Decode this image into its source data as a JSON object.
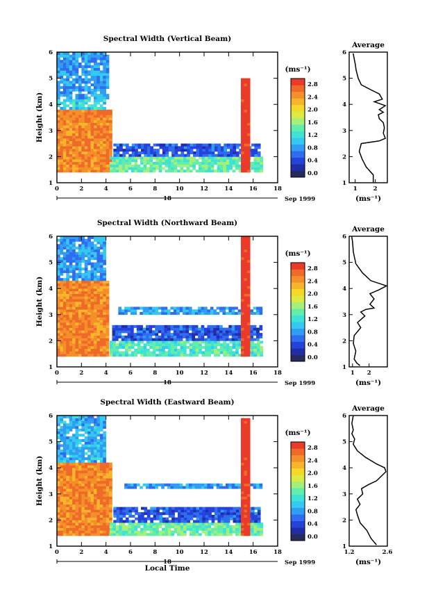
{
  "date_label": "Sep 1999",
  "day_label": "18",
  "xlabel": "Local Time",
  "colorbar": {
    "unit": "(ms⁻¹)",
    "ticks": [
      "2.8",
      "2.4",
      "2.0",
      "1.6",
      "1.2",
      "0.8",
      "0.4",
      "0.0"
    ],
    "colors": [
      "#262a5e",
      "#1f2ea8",
      "#2443d8",
      "#2f6cf0",
      "#2f9df2",
      "#35c8f0",
      "#3fe3d6",
      "#62eeaa",
      "#a4f07a",
      "#dceb44",
      "#f5d928",
      "#f6b52b",
      "#f48f2a",
      "#ef6a28",
      "#ea3a2a"
    ]
  },
  "chart_data": [
    {
      "type": "heatmap",
      "title": "Spectral Width (Vertical Beam)",
      "xlabel": "",
      "ylabel": "Height (km)",
      "x_ticks": [
        "0",
        "2",
        "4",
        "6",
        "8",
        "10",
        "12",
        "14",
        "16",
        "18"
      ],
      "y_ticks": [
        "1",
        "2",
        "3",
        "4",
        "5",
        "6"
      ],
      "xlim": [
        0,
        18
      ],
      "ylim": [
        1,
        6
      ],
      "zlabel": "Spectral width (ms⁻¹)",
      "zlim": [
        0.0,
        3.0
      ],
      "regions": [
        {
          "x": [
            0,
            4.3
          ],
          "y": [
            1.4,
            3.8
          ],
          "z": 2.8
        },
        {
          "x": [
            0,
            4.0
          ],
          "y": [
            3.8,
            4.2
          ],
          "z": 1.2
        },
        {
          "x": [
            0,
            4.1
          ],
          "y": [
            4.2,
            6.0
          ],
          "z": 0.9
        },
        {
          "x": [
            4.3,
            16.6
          ],
          "y": [
            1.4,
            2.0
          ],
          "z": 1.5
        },
        {
          "x": [
            4.6,
            16.6
          ],
          "y": [
            2.0,
            2.5
          ],
          "z": 0.6
        },
        {
          "x": [
            15.0,
            15.6
          ],
          "y": [
            1.4,
            5.0
          ],
          "z": 3.0
        }
      ],
      "average_profile": {
        "title": "Average",
        "xlabel": "(ms⁻¹)",
        "x_ticks": [
          "1",
          "2"
        ],
        "xlim": [
          0.7,
          2.6
        ],
        "ylim": [
          1,
          6
        ],
        "points": [
          [
            1.9,
            1.02
          ],
          [
            1.9,
            1.3
          ],
          [
            1.55,
            1.6
          ],
          [
            1.35,
            1.9
          ],
          [
            1.2,
            2.2
          ],
          [
            1.3,
            2.5
          ],
          [
            2.2,
            2.6
          ],
          [
            2.5,
            2.7
          ],
          [
            2.4,
            2.9
          ],
          [
            2.45,
            3.1
          ],
          [
            2.4,
            3.3
          ],
          [
            2.2,
            3.45
          ],
          [
            2.15,
            3.6
          ],
          [
            2.4,
            3.7
          ],
          [
            2.2,
            3.8
          ],
          [
            2.5,
            3.95
          ],
          [
            1.95,
            4.1
          ],
          [
            2.35,
            4.2
          ],
          [
            2.2,
            4.4
          ],
          [
            1.8,
            4.55
          ],
          [
            1.3,
            4.75
          ],
          [
            1.15,
            5.0
          ],
          [
            1.05,
            5.3
          ],
          [
            1.0,
            5.55
          ],
          [
            0.95,
            5.75
          ],
          [
            0.9,
            5.95
          ]
        ]
      }
    },
    {
      "type": "heatmap",
      "title": "Spectral Width (Northward Beam)",
      "xlabel": "",
      "ylabel": "Height (km)",
      "x_ticks": [
        "0",
        "2",
        "4",
        "6",
        "8",
        "10",
        "12",
        "14",
        "16",
        "18"
      ],
      "y_ticks": [
        "1",
        "2",
        "3",
        "4",
        "5",
        "6"
      ],
      "xlim": [
        0,
        18
      ],
      "ylim": [
        1,
        6
      ],
      "zlabel": "Spectral width (ms⁻¹)",
      "zlim": [
        0.0,
        3.0
      ],
      "regions": [
        {
          "x": [
            0,
            4.2
          ],
          "y": [
            1.4,
            4.3
          ],
          "z": 2.8
        },
        {
          "x": [
            0,
            4.0
          ],
          "y": [
            4.3,
            6.0
          ],
          "z": 0.9
        },
        {
          "x": [
            4.3,
            16.6
          ],
          "y": [
            1.4,
            2.0
          ],
          "z": 1.4
        },
        {
          "x": [
            4.5,
            16.6
          ],
          "y": [
            2.0,
            2.6
          ],
          "z": 0.6
        },
        {
          "x": [
            5.0,
            16.6
          ],
          "y": [
            3.0,
            3.3
          ],
          "z": 0.9
        },
        {
          "x": [
            15.0,
            15.6
          ],
          "y": [
            1.4,
            6.0
          ],
          "z": 3.0
        }
      ],
      "average_profile": {
        "title": "Average",
        "xlabel": "(ms⁻¹)",
        "x_ticks": [
          "1",
          "2"
        ],
        "xlim": [
          0.8,
          3.1
        ],
        "ylim": [
          1,
          6
        ],
        "points": [
          [
            1.45,
            1.05
          ],
          [
            1.25,
            1.15
          ],
          [
            1.1,
            1.3
          ],
          [
            1.2,
            1.6
          ],
          [
            1.05,
            1.9
          ],
          [
            1.1,
            2.2
          ],
          [
            1.5,
            2.5
          ],
          [
            1.3,
            2.7
          ],
          [
            1.75,
            2.95
          ],
          [
            1.5,
            3.1
          ],
          [
            1.8,
            3.2
          ],
          [
            2.3,
            3.25
          ],
          [
            2.05,
            3.4
          ],
          [
            2.3,
            3.6
          ],
          [
            2.05,
            3.8
          ],
          [
            2.6,
            3.95
          ],
          [
            3.05,
            4.1
          ],
          [
            2.1,
            4.3
          ],
          [
            1.6,
            4.6
          ],
          [
            1.2,
            4.95
          ],
          [
            1.05,
            5.4
          ],
          [
            1.0,
            5.8
          ],
          [
            0.95,
            6.0
          ]
        ]
      }
    },
    {
      "type": "heatmap",
      "title": "Spectral Width (Eastward Beam)",
      "xlabel": "Local Time",
      "ylabel": "Height (km)",
      "x_ticks": [
        "0",
        "2",
        "4",
        "6",
        "8",
        "10",
        "12",
        "14",
        "16",
        "18"
      ],
      "y_ticks": [
        "1",
        "2",
        "3",
        "4",
        "5",
        "6"
      ],
      "xlim": [
        0,
        18
      ],
      "ylim": [
        1,
        6
      ],
      "zlabel": "Spectral width (ms⁻¹)",
      "zlim": [
        0.0,
        3.0
      ],
      "regions": [
        {
          "x": [
            0,
            4.3
          ],
          "y": [
            1.4,
            4.2
          ],
          "z": 2.8
        },
        {
          "x": [
            0,
            4.0
          ],
          "y": [
            4.2,
            6.0
          ],
          "z": 1.0
        },
        {
          "x": [
            4.3,
            16.6
          ],
          "y": [
            1.4,
            1.9
          ],
          "z": 1.5
        },
        {
          "x": [
            4.6,
            16.6
          ],
          "y": [
            1.9,
            2.5
          ],
          "z": 0.6
        },
        {
          "x": [
            5.5,
            16.6
          ],
          "y": [
            3.2,
            3.4
          ],
          "z": 0.9
        },
        {
          "x": [
            15.0,
            15.6
          ],
          "y": [
            1.4,
            5.9
          ],
          "z": 3.0
        }
      ],
      "average_profile": {
        "title": "Average",
        "xlabel": "(ms⁻¹)",
        "x_ticks": [
          "1.2",
          "2.6"
        ],
        "xlim": [
          1.2,
          2.6
        ],
        "ylim": [
          1,
          6
        ],
        "points": [
          [
            2.2,
            1.05
          ],
          [
            2.0,
            1.3
          ],
          [
            1.85,
            1.6
          ],
          [
            1.6,
            1.9
          ],
          [
            1.5,
            2.2
          ],
          [
            1.45,
            2.4
          ],
          [
            1.6,
            2.6
          ],
          [
            1.5,
            2.8
          ],
          [
            1.7,
            3.0
          ],
          [
            1.65,
            3.2
          ],
          [
            1.9,
            3.35
          ],
          [
            2.2,
            3.5
          ],
          [
            2.4,
            3.7
          ],
          [
            2.55,
            3.85
          ],
          [
            2.5,
            4.0
          ],
          [
            2.2,
            4.15
          ],
          [
            1.8,
            4.4
          ],
          [
            1.5,
            4.65
          ],
          [
            1.35,
            4.9
          ],
          [
            1.4,
            5.1
          ],
          [
            1.3,
            5.3
          ],
          [
            1.35,
            5.45
          ],
          [
            1.3,
            5.7
          ],
          [
            1.35,
            6.0
          ]
        ]
      }
    }
  ]
}
